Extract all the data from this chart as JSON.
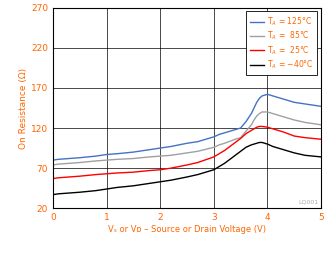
{
  "xlabel": "Vₛ or Vᴅ – Source or Drain Voltage (V)",
  "ylabel": "On Resistance (Ω)",
  "xlim": [
    0,
    5
  ],
  "ylim": [
    20,
    270
  ],
  "yticks": [
    20,
    70,
    120,
    170,
    220,
    270
  ],
  "xticks": [
    0,
    1,
    2,
    3,
    4,
    5
  ],
  "legend_labels": [
    "T$_A$ = 125°C",
    "T$_A$ =  85°C",
    "T$_A$ =  25°C",
    "T$_A$ = −40°C"
  ],
  "colors": [
    "#4472C4",
    "#A0A0A0",
    "#FF0000",
    "#000000"
  ],
  "curves": {
    "T125": {
      "x": [
        0.0,
        0.1,
        0.3,
        0.5,
        0.8,
        1.0,
        1.2,
        1.5,
        1.8,
        2.0,
        2.2,
        2.5,
        2.7,
        3.0,
        3.1,
        3.2,
        3.4,
        3.5,
        3.6,
        3.7,
        3.75,
        3.8,
        3.85,
        3.9,
        4.0,
        4.1,
        4.2,
        4.3,
        4.5,
        4.7,
        5.0
      ],
      "y": [
        80,
        81,
        82,
        83,
        85,
        87,
        88,
        90,
        93,
        95,
        97,
        101,
        103,
        109,
        112,
        114,
        118,
        120,
        128,
        138,
        145,
        152,
        157,
        160,
        162,
        160,
        158,
        156,
        152,
        150,
        147
      ]
    },
    "T85": {
      "x": [
        0.0,
        0.1,
        0.3,
        0.5,
        0.8,
        1.0,
        1.2,
        1.5,
        1.8,
        2.0,
        2.2,
        2.5,
        2.7,
        3.0,
        3.1,
        3.2,
        3.4,
        3.5,
        3.6,
        3.7,
        3.75,
        3.8,
        3.85,
        3.9,
        4.0,
        4.1,
        4.2,
        4.3,
        4.5,
        4.7,
        5.0
      ],
      "y": [
        74,
        75,
        76,
        77,
        79,
        80,
        81,
        82,
        84,
        85,
        86,
        89,
        91,
        96,
        99,
        101,
        106,
        108,
        116,
        124,
        130,
        135,
        138,
        140,
        140,
        138,
        136,
        134,
        130,
        127,
        124
      ]
    },
    "T25": {
      "x": [
        0.0,
        0.1,
        0.3,
        0.5,
        0.8,
        1.0,
        1.2,
        1.5,
        1.8,
        2.0,
        2.2,
        2.5,
        2.7,
        3.0,
        3.1,
        3.2,
        3.4,
        3.5,
        3.6,
        3.7,
        3.75,
        3.8,
        3.85,
        3.9,
        4.0,
        4.1,
        4.2,
        4.3,
        4.5,
        4.7,
        5.0
      ],
      "y": [
        57,
        58,
        59,
        60,
        62,
        63,
        64,
        65,
        67,
        68,
        70,
        74,
        77,
        84,
        88,
        92,
        102,
        107,
        113,
        117,
        119,
        121,
        122,
        122,
        121,
        119,
        117,
        115,
        110,
        108,
        106
      ]
    },
    "Tm40": {
      "x": [
        0.0,
        0.1,
        0.3,
        0.5,
        0.8,
        1.0,
        1.2,
        1.5,
        1.8,
        2.0,
        2.2,
        2.5,
        2.7,
        3.0,
        3.1,
        3.2,
        3.4,
        3.5,
        3.6,
        3.7,
        3.75,
        3.8,
        3.85,
        3.9,
        4.0,
        4.1,
        4.2,
        4.3,
        4.5,
        4.7,
        5.0
      ],
      "y": [
        37,
        38,
        39,
        40,
        42,
        44,
        46,
        48,
        51,
        53,
        55,
        59,
        62,
        68,
        72,
        76,
        86,
        91,
        96,
        99,
        100,
        101,
        102,
        102,
        100,
        97,
        95,
        93,
        89,
        86,
        84
      ]
    }
  },
  "background_color": "#FFFFFF",
  "font_color": "#FF6600",
  "watermark": "LQ001"
}
